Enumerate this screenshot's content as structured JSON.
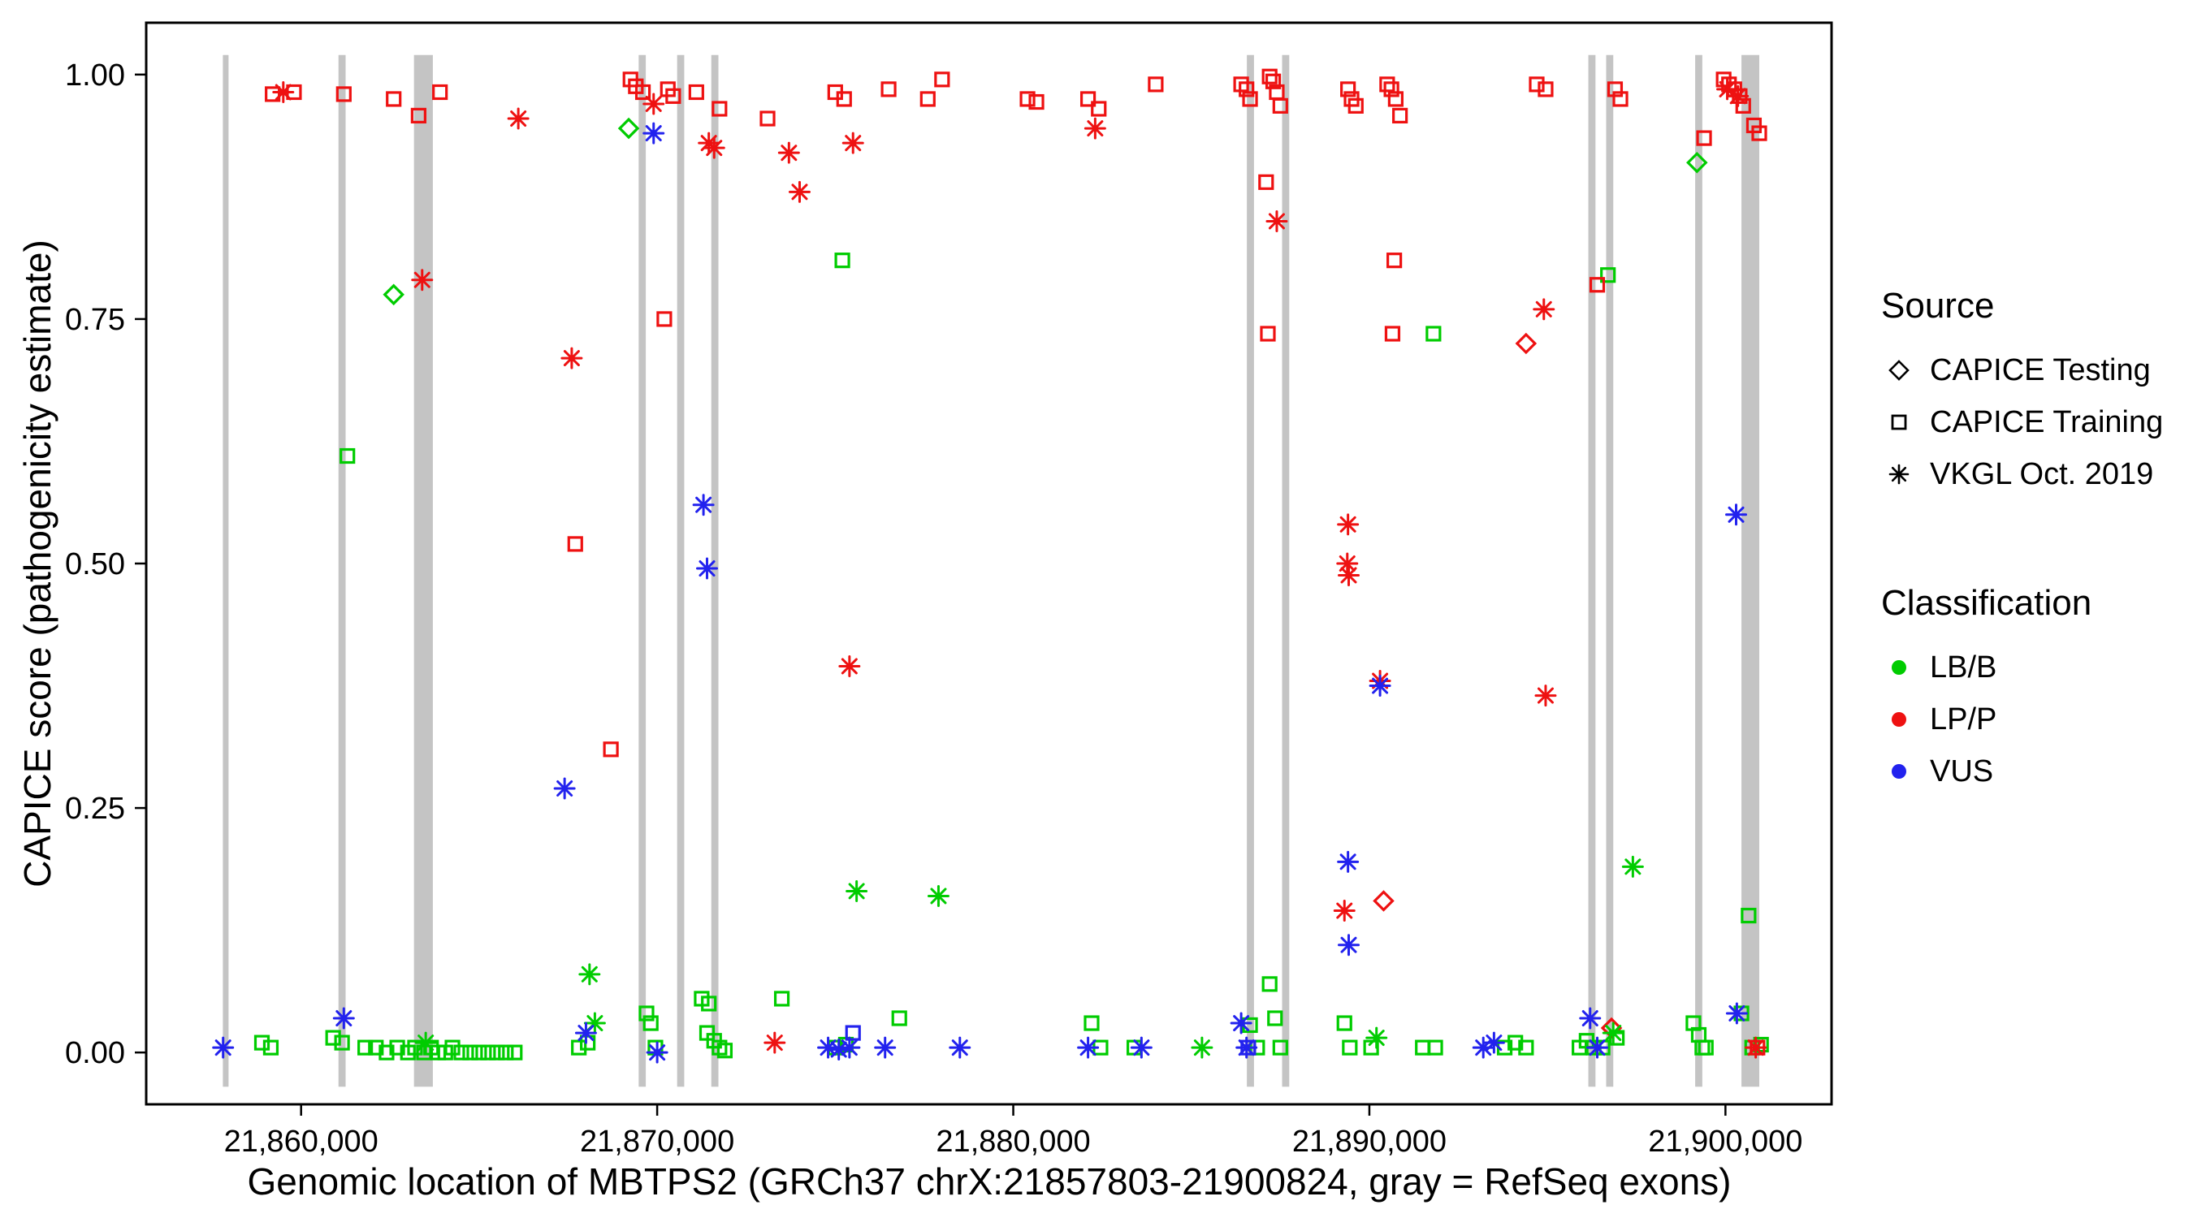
{
  "chart_data": {
    "type": "scatter",
    "title": "",
    "xlabel": "Genomic location of MBTPS2 (GRCh37 chrX:21857803-21900824, gray = RefSeq exons)",
    "ylabel": "CAPICE score (pathogenicity estimate)",
    "xlim": [
      21855650,
      21902980
    ],
    "ylim": [
      -0.053,
      1.053
    ],
    "grid": false,
    "legend_position": "right",
    "x_ticks": [
      {
        "value": 21860000,
        "label": "21,860,000"
      },
      {
        "value": 21870000,
        "label": "21,870,000"
      },
      {
        "value": 21880000,
        "label": "21,880,000"
      },
      {
        "value": 21890000,
        "label": "21,890,000"
      },
      {
        "value": 21900000,
        "label": "21,900,000"
      }
    ],
    "y_ticks": [
      {
        "value": 0.0,
        "label": "0.00"
      },
      {
        "value": 0.25,
        "label": "0.25"
      },
      {
        "value": 0.5,
        "label": "0.50"
      },
      {
        "value": 0.75,
        "label": "0.75"
      },
      {
        "value": 1.0,
        "label": "1.00"
      }
    ],
    "exon_color": "#c4c4c4",
    "exons": [
      [
        21857803,
        21857960
      ],
      [
        21861050,
        21861250
      ],
      [
        21863170,
        21863700
      ],
      [
        21869480,
        21869680
      ],
      [
        21870560,
        21870760
      ],
      [
        21871520,
        21871720
      ],
      [
        21886560,
        21886760
      ],
      [
        21887550,
        21887750
      ],
      [
        21896150,
        21896350
      ],
      [
        21896650,
        21896850
      ],
      [
        21899150,
        21899350
      ],
      [
        21900450,
        21900950
      ]
    ],
    "legend": {
      "source_title": "Source",
      "sources": [
        {
          "label": "CAPICE Testing",
          "shape": "diamond"
        },
        {
          "label": "CAPICE Training",
          "shape": "square"
        },
        {
          "label": "VKGL Oct. 2019",
          "shape": "asterisk"
        }
      ],
      "class_title": "Classification",
      "classes": [
        {
          "label": "LB/B",
          "color": "#00CC00"
        },
        {
          "label": "LP/P",
          "color": "#EE1111"
        },
        {
          "label": "VUS",
          "color": "#2222EE"
        }
      ]
    },
    "series": [
      {
        "source": "CAPICE Testing",
        "classification": "LB/B",
        "shape": "diamond",
        "color": "#00CC00",
        "points": [
          [
            21862600,
            0.775
          ],
          [
            21869200,
            0.945
          ],
          [
            21899200,
            0.91
          ]
        ]
      },
      {
        "source": "CAPICE Testing",
        "classification": "LP/P",
        "shape": "diamond",
        "color": "#EE1111",
        "points": [
          [
            21890400,
            0.155
          ],
          [
            21894400,
            0.725
          ],
          [
            21896800,
            0.025
          ]
        ]
      },
      {
        "source": "CAPICE Training",
        "classification": "LB/B",
        "shape": "square",
        "color": "#00CC00",
        "points": [
          [
            21858900,
            0.01
          ],
          [
            21859150,
            0.005
          ],
          [
            21860900,
            0.015
          ],
          [
            21861150,
            0.01
          ],
          [
            21861300,
            0.61
          ],
          [
            21861800,
            0.005
          ],
          [
            21862100,
            0.005
          ],
          [
            21862400,
            0.0
          ],
          [
            21862700,
            0.005
          ],
          [
            21863000,
            0.0
          ],
          [
            21863200,
            0.005
          ],
          [
            21863450,
            0.0
          ],
          [
            21863650,
            0.005
          ],
          [
            21863850,
            0.0
          ],
          [
            21864050,
            0.0
          ],
          [
            21864250,
            0.005
          ],
          [
            21864500,
            0.0
          ],
          [
            21864750,
            0.0
          ],
          [
            21865000,
            0.0
          ],
          [
            21865250,
            0.0
          ],
          [
            21865500,
            0.0
          ],
          [
            21865750,
            0.0
          ],
          [
            21866000,
            0.0
          ],
          [
            21867800,
            0.005
          ],
          [
            21868050,
            0.01
          ],
          [
            21869700,
            0.04
          ],
          [
            21869820,
            0.03
          ],
          [
            21869950,
            0.005
          ],
          [
            21871250,
            0.055
          ],
          [
            21871450,
            0.05
          ],
          [
            21871400,
            0.02
          ],
          [
            21871600,
            0.012
          ],
          [
            21871750,
            0.005
          ],
          [
            21871900,
            0.002
          ],
          [
            21873500,
            0.055
          ],
          [
            21875000,
            0.005
          ],
          [
            21875300,
            0.008
          ],
          [
            21875200,
            0.81
          ],
          [
            21876800,
            0.035
          ],
          [
            21882200,
            0.03
          ],
          [
            21882450,
            0.005
          ],
          [
            21883400,
            0.005
          ],
          [
            21886650,
            0.028
          ],
          [
            21886850,
            0.005
          ],
          [
            21887200,
            0.07
          ],
          [
            21887350,
            0.035
          ],
          [
            21887500,
            0.005
          ],
          [
            21889300,
            0.03
          ],
          [
            21889450,
            0.005
          ],
          [
            21890050,
            0.005
          ],
          [
            21891500,
            0.005
          ],
          [
            21891850,
            0.005
          ],
          [
            21891800,
            0.735
          ],
          [
            21893800,
            0.005
          ],
          [
            21894100,
            0.01
          ],
          [
            21894400,
            0.005
          ],
          [
            21895900,
            0.005
          ],
          [
            21896100,
            0.012
          ],
          [
            21896300,
            0.005
          ],
          [
            21896550,
            0.005
          ],
          [
            21896700,
            0.795
          ],
          [
            21896950,
            0.015
          ],
          [
            21899100,
            0.03
          ],
          [
            21899250,
            0.018
          ],
          [
            21899350,
            0.005
          ],
          [
            21899450,
            0.005
          ],
          [
            21900450,
            0.04
          ],
          [
            21900650,
            0.14
          ],
          [
            21900750,
            0.005
          ],
          [
            21901000,
            0.008
          ]
        ]
      },
      {
        "source": "CAPICE Training",
        "classification": "LP/P",
        "shape": "square",
        "color": "#EE1111",
        "points": [
          [
            21859200,
            0.98
          ],
          [
            21859800,
            0.982
          ],
          [
            21861200,
            0.98
          ],
          [
            21862600,
            0.975
          ],
          [
            21863300,
            0.958
          ],
          [
            21863900,
            0.982
          ],
          [
            21869250,
            0.995
          ],
          [
            21869400,
            0.988
          ],
          [
            21869600,
            0.982
          ],
          [
            21867700,
            0.52
          ],
          [
            21868700,
            0.31
          ],
          [
            21870300,
            0.985
          ],
          [
            21870450,
            0.978
          ],
          [
            21870200,
            0.75
          ],
          [
            21871100,
            0.982
          ],
          [
            21871750,
            0.965
          ],
          [
            21873100,
            0.955
          ],
          [
            21875000,
            0.982
          ],
          [
            21875250,
            0.975
          ],
          [
            21876500,
            0.985
          ],
          [
            21877600,
            0.975
          ],
          [
            21878000,
            0.995
          ],
          [
            21880400,
            0.975
          ],
          [
            21880650,
            0.972
          ],
          [
            21882100,
            0.975
          ],
          [
            21882400,
            0.965
          ],
          [
            21884000,
            0.99
          ],
          [
            21886400,
            0.99
          ],
          [
            21886550,
            0.985
          ],
          [
            21886650,
            0.975
          ],
          [
            21887200,
            0.998
          ],
          [
            21887300,
            0.993
          ],
          [
            21887400,
            0.982
          ],
          [
            21887500,
            0.968
          ],
          [
            21887100,
            0.89
          ],
          [
            21887150,
            0.735
          ],
          [
            21889400,
            0.985
          ],
          [
            21889500,
            0.975
          ],
          [
            21889620,
            0.968
          ],
          [
            21890500,
            0.99
          ],
          [
            21890620,
            0.985
          ],
          [
            21890740,
            0.975
          ],
          [
            21890860,
            0.958
          ],
          [
            21890700,
            0.81
          ],
          [
            21890650,
            0.735
          ],
          [
            21894700,
            0.99
          ],
          [
            21894950,
            0.985
          ],
          [
            21896400,
            0.785
          ],
          [
            21896900,
            0.985
          ],
          [
            21897050,
            0.975
          ],
          [
            21899400,
            0.935
          ],
          [
            21899950,
            0.995
          ],
          [
            21900100,
            0.99
          ],
          [
            21900250,
            0.985
          ],
          [
            21900400,
            0.978
          ],
          [
            21900500,
            0.968
          ],
          [
            21900800,
            0.948
          ],
          [
            21900950,
            0.94
          ],
          [
            21900900,
            0.005
          ]
        ]
      },
      {
        "source": "CAPICE Training",
        "classification": "VUS",
        "shape": "square",
        "color": "#2222EE",
        "points": [
          [
            21875500,
            0.02
          ],
          [
            21886600,
            0.005
          ]
        ]
      },
      {
        "source": "VKGL Oct. 2019",
        "classification": "LB/B",
        "shape": "asterisk",
        "color": "#00CC00",
        "points": [
          [
            21863500,
            0.01
          ],
          [
            21868100,
            0.08
          ],
          [
            21868250,
            0.03
          ],
          [
            21875600,
            0.165
          ],
          [
            21877900,
            0.16
          ],
          [
            21885300,
            0.005
          ],
          [
            21890200,
            0.015
          ],
          [
            21896850,
            0.02
          ],
          [
            21897400,
            0.19
          ]
        ]
      },
      {
        "source": "VKGL Oct. 2019",
        "classification": "LP/P",
        "shape": "asterisk",
        "color": "#EE1111",
        "points": [
          [
            21859500,
            0.982
          ],
          [
            21866100,
            0.955
          ],
          [
            21863400,
            0.79
          ],
          [
            21867600,
            0.71
          ],
          [
            21869900,
            0.97
          ],
          [
            21871450,
            0.93
          ],
          [
            21871600,
            0.925
          ],
          [
            21873700,
            0.92
          ],
          [
            21874000,
            0.88
          ],
          [
            21875500,
            0.93
          ],
          [
            21875400,
            0.395
          ],
          [
            21882300,
            0.945
          ],
          [
            21887400,
            0.85
          ],
          [
            21889400,
            0.54
          ],
          [
            21889380,
            0.5
          ],
          [
            21889420,
            0.488
          ],
          [
            21890300,
            0.38
          ],
          [
            21889300,
            0.145
          ],
          [
            21894900,
            0.76
          ],
          [
            21894950,
            0.365
          ],
          [
            21873300,
            0.01
          ],
          [
            21900850,
            0.005
          ],
          [
            21900050,
            0.985
          ],
          [
            21900350,
            0.978
          ]
        ]
      },
      {
        "source": "VKGL Oct. 2019",
        "classification": "VUS",
        "shape": "asterisk",
        "color": "#2222EE",
        "points": [
          [
            21857810,
            0.005
          ],
          [
            21861200,
            0.035
          ],
          [
            21867400,
            0.27
          ],
          [
            21868000,
            0.02
          ],
          [
            21869900,
            0.94
          ],
          [
            21870000,
            0.0
          ],
          [
            21871300,
            0.56
          ],
          [
            21871400,
            0.495
          ],
          [
            21874800,
            0.005
          ],
          [
            21875100,
            0.003
          ],
          [
            21875400,
            0.005
          ],
          [
            21876400,
            0.005
          ],
          [
            21878500,
            0.005
          ],
          [
            21882100,
            0.005
          ],
          [
            21883600,
            0.005
          ],
          [
            21886400,
            0.03
          ],
          [
            21886550,
            0.005
          ],
          [
            21889400,
            0.195
          ],
          [
            21889420,
            0.11
          ],
          [
            21890300,
            0.375
          ],
          [
            21893200,
            0.005
          ],
          [
            21893500,
            0.01
          ],
          [
            21896200,
            0.035
          ],
          [
            21896400,
            0.005
          ],
          [
            21900300,
            0.55
          ],
          [
            21900320,
            0.04
          ]
        ]
      }
    ]
  }
}
